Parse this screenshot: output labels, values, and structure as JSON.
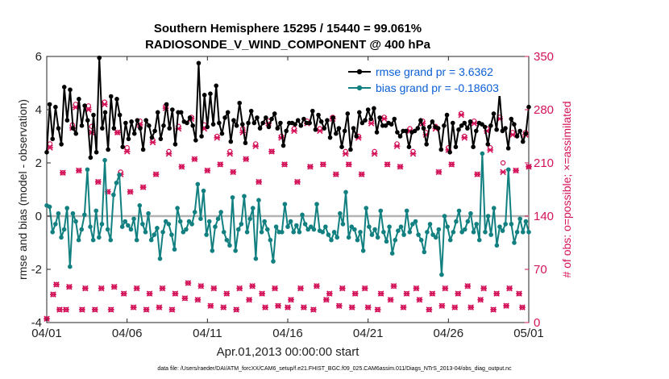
{
  "chart_data": {
    "type": "line",
    "title": "Southern Hemisphere 15295 / 15440 = 99.061%",
    "subtitle": "RADIOSONDE_V_WIND_COMPONENT @ 400 hPa",
    "xlabel": "Apr.01,2013 00:00:00 start",
    "ylabel_left": "rmse and bias (model - observation)",
    "ylabel_right": "# of obs: o=possible; ×=assimilated",
    "footer": "data file: /Users/raeder/DAI/ATM_forcXX/CAM6_setup/f.e21.FHIST_BGC.f09_025.CAM6assim.011/Diags_NTrS_2013-04/obs_diag_output.nc",
    "xlim": [
      0,
      30
    ],
    "ylim_left": [
      -4,
      6
    ],
    "ylim_right": [
      0,
      350
    ],
    "x_ticks": [
      0,
      5,
      10,
      15,
      20,
      25,
      30
    ],
    "x_tick_labels": [
      "04/01",
      "04/06",
      "04/11",
      "04/16",
      "04/21",
      "04/26",
      "05/01"
    ],
    "y_ticks_left": [
      -4,
      -2,
      0,
      2,
      4,
      6
    ],
    "y_tick_labels_left": [
      "-4",
      "-2",
      "0",
      "2",
      "4",
      "6"
    ],
    "y_ticks_right": [
      0,
      70,
      140,
      210,
      280,
      350
    ],
    "y_tick_labels_right": [
      "0",
      "70",
      "140",
      "210",
      "280",
      "350"
    ],
    "colors": {
      "rmse": "#000000",
      "bias": "#128080",
      "obs": "#d4145a",
      "zero_line": "#b3b3b3",
      "legend_text": "#0b5fd6"
    },
    "legend": [
      {
        "label": "rmse grand pr = 3.6362",
        "series": "rmse"
      },
      {
        "label": "bias grand pr = -0.18603",
        "series": "bias"
      }
    ],
    "series": [
      {
        "name": "rmse",
        "axis": "left",
        "values": [
          2.4,
          4.2,
          2.9,
          4.1,
          3.3,
          2.7,
          4.85,
          3.6,
          4.75,
          3.3,
          3.1,
          4.4,
          3.4,
          4.15,
          3.6,
          2.2,
          3.8,
          2.4,
          5.95,
          3.3,
          3.9,
          2.5,
          4.5,
          3.3,
          4.4,
          3.8,
          2.6,
          3.5,
          2.9,
          3.55,
          3.1,
          3.6,
          3.3,
          2.5,
          3.6,
          3.4,
          2.95,
          3.2,
          3.9,
          2.9,
          3.4,
          4.2,
          3.3,
          4.0,
          2.7,
          3.9,
          3.9,
          3.55,
          3.5,
          3.7,
          3.4,
          2.85,
          5.75,
          3.0,
          4.55,
          3.35,
          4.6,
          3.45,
          4.9,
          3.5,
          3.1,
          3.7,
          3.9,
          2.8,
          3.6,
          3.4,
          4.25,
          3.45,
          2.75,
          3.5,
          3.95,
          3.5,
          3.7,
          3.3,
          3.5,
          3.7,
          3.35,
          3.65,
          3.85,
          3.3,
          3.5,
          2.65,
          3.2,
          3.5,
          3.5,
          3.45,
          3.6,
          3.4,
          3.65,
          3.5,
          3.5,
          3.95,
          3.25,
          3.8,
          3.55,
          3.3,
          3.6,
          2.95,
          3.7,
          3.1,
          3.3,
          2.6,
          3.2,
          3.85,
          2.5,
          3.3,
          3.0,
          3.9,
          3.5,
          3.6,
          4.0,
          3.65,
          4.05,
          3.15,
          3.7,
          3.4,
          3.4,
          3.5,
          3.45,
          3.65,
          3.15,
          3.0,
          3.2,
          3.2,
          2.6,
          3.15,
          3.2,
          3.3,
          3.6,
          3.3,
          2.7,
          3.35,
          3.55,
          3.35,
          3.3,
          2.5,
          3.4,
          3.8,
          2.4,
          3.5,
          2.6,
          3.25,
          3.4,
          3.5,
          3.3,
          3.55,
          2.6,
          3.2,
          3.5,
          3.45,
          3.35,
          2.7,
          3.4,
          3.85,
          3.25,
          4.6,
          3.2,
          3.3,
          2.55,
          3.65,
          3.45,
          3.0,
          3.2,
          2.8,
          3.1,
          4.1
        ]
      },
      {
        "name": "bias",
        "axis": "left",
        "values": [
          0.4,
          0.35,
          -0.6,
          -0.3,
          0.1,
          -0.8,
          -0.5,
          0.3,
          -1.9,
          0.1,
          -0.2,
          -0.9,
          -0.5,
          0.05,
          1.75,
          -0.4,
          -0.9,
          0.2,
          -0.8,
          -0.3,
          2.1,
          -0.5,
          -0.9,
          0.8,
          1.25,
          1.55,
          -0.4,
          -0.2,
          -0.35,
          -0.5,
          -0.1,
          -0.9,
          0.4,
          -0.3,
          -0.6,
          0.1,
          -0.9,
          -0.7,
          -0.45,
          -1.6,
          -0.6,
          -0.2,
          -0.3,
          -0.7,
          -1.25,
          0.3,
          -0.2,
          -0.6,
          -0.5,
          -0.2,
          -0.3,
          0.15,
          1.2,
          -0.1,
          0.95,
          -0.7,
          -0.2,
          -1.3,
          -0.4,
          -0.1,
          0.15,
          -0.6,
          -0.9,
          -1.1,
          0.7,
          -1.3,
          -0.5,
          -0.3,
          0.75,
          -0.6,
          -0.1,
          0.3,
          -1.6,
          0.6,
          -0.6,
          -0.2,
          -0.5,
          -0.9,
          -1.7,
          -0.4,
          -0.6,
          -0.6,
          0.45,
          -0.4,
          -0.2,
          -0.6,
          -0.35,
          -0.6,
          0.05,
          -0.3,
          -0.5,
          -0.4,
          -0.5,
          0.45,
          -0.55,
          -0.6,
          -0.4,
          -0.7,
          -0.9,
          -0.6,
          -0.8,
          0.1,
          -0.3,
          0.9,
          -0.8,
          -0.4,
          -0.5,
          -0.9,
          -0.6,
          -1.3,
          0.3,
          -0.4,
          -0.7,
          -0.5,
          -0.8,
          0.2,
          -0.6,
          -0.95,
          -0.4,
          -1.4,
          -0.9,
          -0.55,
          -0.4,
          -0.7,
          0.2,
          -0.6,
          -0.3,
          -0.2,
          -0.7,
          -0.9,
          -1.35,
          -0.6,
          -0.3,
          -0.7,
          -0.8,
          -0.5,
          -2.2,
          0.0,
          -0.4,
          -0.9,
          -0.6,
          -0.2,
          0.2,
          -0.6,
          -0.5,
          -0.2,
          0.1,
          -0.6,
          -0.3,
          -0.9,
          2.35,
          -0.6,
          0.0,
          -0.7,
          0.3,
          -1.1,
          -0.4,
          -0.55,
          -0.3,
          1.75,
          -0.3,
          -1.0,
          -0.6,
          -0.1,
          -0.6,
          -0.2,
          -0.6
        ]
      },
      {
        "name": "obs_possible",
        "axis": "right",
        "values": [
          5,
          235,
          37,
          50,
          17,
          197,
          17,
          47,
          260,
          287,
          200,
          17,
          45,
          285,
          258,
          17,
          185,
          45,
          290,
          172,
          17,
          47,
          250,
          198,
          38,
          230,
          172,
          20,
          45,
          265,
          178,
          17,
          38,
          240,
          195,
          20,
          45,
          285,
          225,
          17,
          38,
          258,
          205,
          32,
          52,
          270,
          215,
          30,
          48,
          260,
          200,
          22,
          45,
          245,
          208,
          20,
          38,
          225,
          198,
          17,
          45,
          255,
          215,
          30,
          48,
          235,
          185,
          38,
          20,
          265,
          225,
          45,
          22,
          245,
          208,
          20,
          30,
          255,
          185,
          45,
          20,
          265,
          205,
          17,
          48,
          255,
          208,
          30,
          38,
          270,
          195,
          22,
          45,
          225,
          208,
          20,
          38,
          245,
          195,
          45,
          20,
          265,
          225,
          17,
          38,
          270,
          208,
          30,
          48,
          235,
          205,
          20,
          38,
          255,
          225,
          45,
          30,
          265,
          250,
          17,
          38,
          258,
          198,
          22,
          45,
          230,
          208,
          20,
          38,
          275,
          245,
          48,
          20,
          265,
          195,
          30,
          45,
          255,
          230,
          17,
          38,
          270,
          210,
          22,
          45,
          250,
          200,
          38,
          20,
          250,
          205
        ]
      },
      {
        "name": "obs_assimilated",
        "axis": "right",
        "values": [
          5,
          230,
          37,
          50,
          17,
          197,
          17,
          47,
          256,
          283,
          200,
          17,
          45,
          280,
          250,
          17,
          185,
          45,
          287,
          172,
          17,
          47,
          250,
          195,
          38,
          225,
          172,
          20,
          45,
          260,
          178,
          17,
          38,
          237,
          195,
          20,
          45,
          282,
          222,
          17,
          38,
          255,
          205,
          32,
          52,
          268,
          215,
          30,
          48,
          255,
          200,
          22,
          45,
          243,
          208,
          20,
          38,
          222,
          198,
          17,
          45,
          250,
          215,
          30,
          48,
          232,
          185,
          38,
          20,
          262,
          225,
          45,
          22,
          243,
          208,
          20,
          30,
          252,
          185,
          45,
          20,
          262,
          205,
          17,
          48,
          252,
          208,
          30,
          38,
          268,
          195,
          22,
          45,
          222,
          208,
          20,
          38,
          243,
          195,
          45,
          20,
          262,
          222,
          17,
          38,
          268,
          208,
          30,
          48,
          232,
          205,
          20,
          38,
          252,
          222,
          45,
          30,
          262,
          247,
          17,
          38,
          255,
          198,
          22,
          45,
          227,
          208,
          20,
          38,
          273,
          243,
          48,
          20,
          262,
          195,
          30,
          45,
          252,
          227,
          17,
          38,
          268,
          198,
          22,
          45,
          247,
          200,
          38,
          20,
          247,
          205
        ]
      }
    ]
  }
}
